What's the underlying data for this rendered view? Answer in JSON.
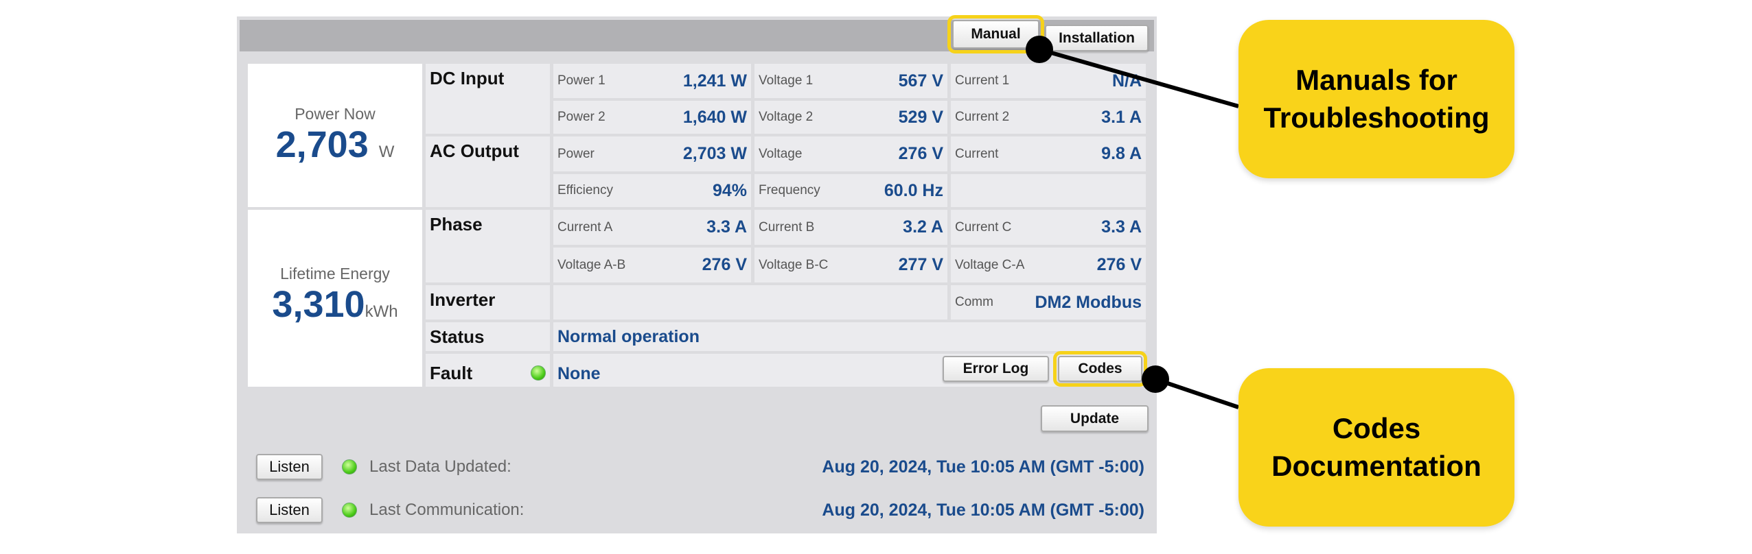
{
  "header": {
    "manual": "Manual",
    "installation": "Installation"
  },
  "power_now": {
    "title": "Power Now",
    "value": "2,703",
    "unit": "W"
  },
  "lifetime": {
    "title": "Lifetime Energy",
    "value": "3,310",
    "unit": "kWh"
  },
  "dc_input": {
    "label": "DC Input",
    "power1": [
      "Power 1",
      "1,241 W"
    ],
    "voltage1": [
      "Voltage 1",
      "567 V"
    ],
    "current1": [
      "Current 1",
      "N/A"
    ],
    "power2": [
      "Power 2",
      "1,640 W"
    ],
    "voltage2": [
      "Voltage 2",
      "529 V"
    ],
    "current2": [
      "Current 2",
      "3.1 A"
    ]
  },
  "ac_output": {
    "label": "AC Output",
    "power": [
      "Power",
      "2,703 W"
    ],
    "voltage": [
      "Voltage",
      "276 V"
    ],
    "current": [
      "Current",
      "9.8 A"
    ],
    "efficiency": [
      "Efficiency",
      "94%"
    ],
    "frequency": [
      "Frequency",
      "60.0 Hz"
    ]
  },
  "phase": {
    "label": "Phase",
    "ca": [
      "Current A",
      "3.3 A"
    ],
    "cb": [
      "Current B",
      "3.2 A"
    ],
    "cc": [
      "Current C",
      "3.3 A"
    ],
    "vab": [
      "Voltage A-B",
      "276 V"
    ],
    "vbc": [
      "Voltage B-C",
      "277 V"
    ],
    "vca": [
      "Voltage C-A",
      "276 V"
    ]
  },
  "inverter": {
    "label": "Inverter",
    "comm": [
      "Comm",
      "DM2 Modbus"
    ]
  },
  "status": {
    "label": "Status",
    "value": "Normal operation"
  },
  "fault": {
    "label": "Fault",
    "value": "None",
    "error_log": "Error Log",
    "codes": "Codes",
    "led_color": "#4ccc1a"
  },
  "update": "Update",
  "last_data": {
    "listen": "Listen",
    "label": "Last Data Updated:",
    "value": "Aug 20, 2024, Tue 10:05 AM (GMT -5:00)"
  },
  "last_comm": {
    "listen": "Listen",
    "label": "Last Communication:",
    "value": "Aug 20, 2024, Tue 10:05 AM (GMT -5:00)"
  },
  "callouts": {
    "manuals": "Manuals for Troubleshooting",
    "codes": "Codes Documentation",
    "color": "#f9d31a"
  }
}
